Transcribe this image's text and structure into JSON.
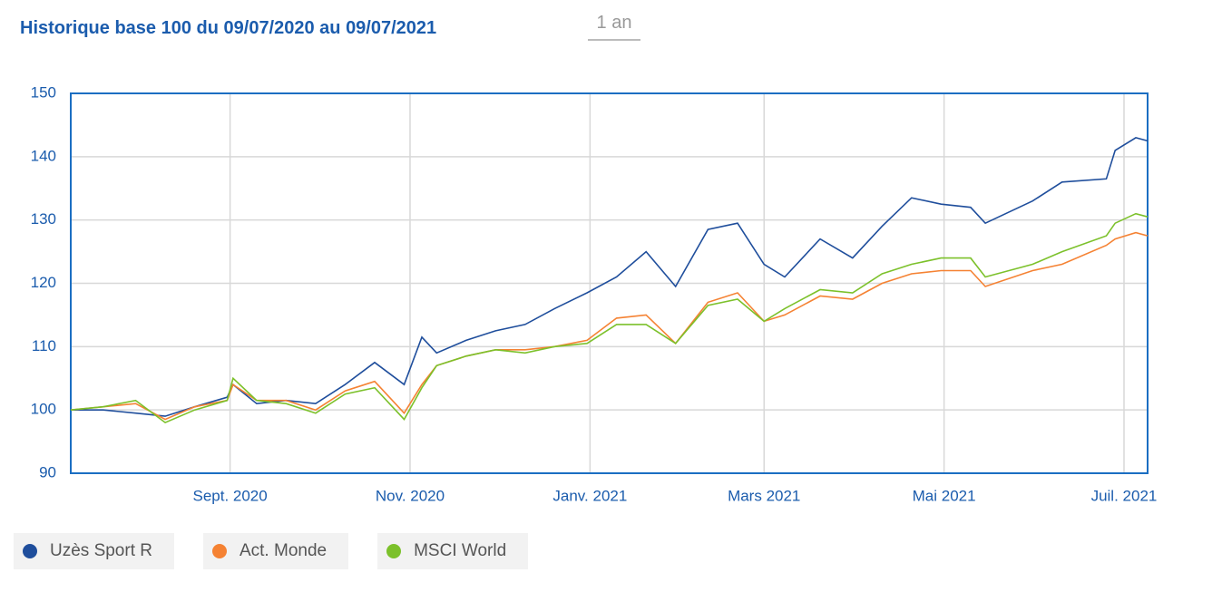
{
  "range_button": "1 an",
  "chart_data": {
    "type": "line",
    "title": "Historique base 100 du 09/07/2020 au 09/07/2021",
    "x": [
      "2020-07-09",
      "2020-07-20",
      "2020-07-31",
      "2020-08-10",
      "2020-08-20",
      "2020-08-31",
      "2020-09-02",
      "2020-09-10",
      "2020-09-20",
      "2020-09-30",
      "2020-10-10",
      "2020-10-20",
      "2020-10-30",
      "2020-11-05",
      "2020-11-10",
      "2020-11-20",
      "2020-11-30",
      "2020-12-10",
      "2020-12-20",
      "2020-12-31",
      "2021-01-10",
      "2021-01-20",
      "2021-01-30",
      "2021-02-10",
      "2021-02-20",
      "2021-03-01",
      "2021-03-08",
      "2021-03-20",
      "2021-03-31",
      "2021-04-10",
      "2021-04-20",
      "2021-04-30",
      "2021-05-10",
      "2021-05-15",
      "2021-05-31",
      "2021-06-10",
      "2021-06-25",
      "2021-06-28",
      "2021-07-05",
      "2021-07-09"
    ],
    "series": [
      {
        "name": "Uzès Sport R",
        "color": "#1f4e9c",
        "values": [
          100,
          100,
          99.5,
          99,
          100.5,
          102,
          104,
          101,
          101.5,
          101,
          104,
          107.5,
          104,
          111.5,
          109,
          111,
          112.5,
          113.5,
          116,
          118.5,
          121,
          125,
          119.5,
          128.5,
          129.5,
          123,
          121,
          127,
          124,
          129,
          133.5,
          132.5,
          132,
          129.5,
          133,
          136,
          136.5,
          141,
          143,
          142.5
        ]
      },
      {
        "name": "Act. Monde",
        "color": "#f58233",
        "values": [
          100,
          100.5,
          101,
          98.5,
          100.5,
          101.5,
          104,
          101.5,
          101.5,
          100,
          103,
          104.5,
          99.5,
          104,
          107,
          108.5,
          109.5,
          109.5,
          110,
          111,
          114.5,
          115,
          110.5,
          117,
          118.5,
          114,
          115,
          118,
          117.5,
          120,
          121.5,
          122,
          122,
          119.5,
          122,
          123,
          126,
          127,
          128,
          127.5
        ]
      },
      {
        "name": "MSCI World",
        "color": "#7cc12b",
        "values": [
          100,
          100.5,
          101.5,
          98,
          100,
          101.5,
          105,
          101.5,
          101,
          99.5,
          102.5,
          103.5,
          98.5,
          103.5,
          107,
          108.5,
          109.5,
          109,
          110,
          110.5,
          113.5,
          113.5,
          110.5,
          116.5,
          117.5,
          114,
          116,
          119,
          118.5,
          121.5,
          123,
          124,
          124,
          121,
          123,
          125,
          127.5,
          129.5,
          131,
          130.5
        ]
      }
    ],
    "xlim": [
      "2020-07-09",
      "2021-07-09"
    ],
    "xticks": [
      {
        "value": "2020-09-01",
        "label": "Sept. 2020"
      },
      {
        "value": "2020-11-01",
        "label": "Nov. 2020"
      },
      {
        "value": "2021-01-01",
        "label": "Janv. 2021"
      },
      {
        "value": "2021-03-01",
        "label": "Mars 2021"
      },
      {
        "value": "2021-05-01",
        "label": "Mai 2021"
      },
      {
        "value": "2021-07-01",
        "label": "Juil. 2021"
      }
    ],
    "ylim": [
      90,
      150
    ],
    "yticks": [
      90,
      100,
      110,
      120,
      130,
      140,
      150
    ],
    "grid": true
  }
}
